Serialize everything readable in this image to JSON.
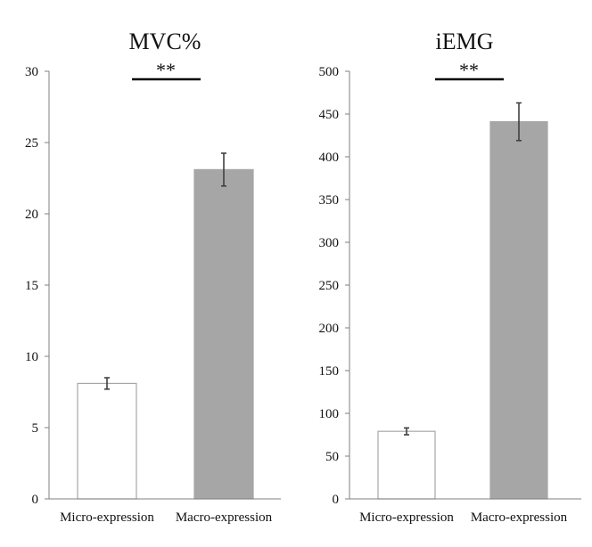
{
  "chart_data": [
    {
      "type": "bar",
      "title": "MVC%",
      "categories": [
        "Micro-expression",
        "Macro-expression"
      ],
      "values": [
        8.1,
        23.1
      ],
      "errors": [
        0.4,
        1.15
      ],
      "colors": [
        "#ffffff",
        "#a6a6a6"
      ],
      "edge_colors": [
        "#a6a6a6",
        "#a6a6a6"
      ],
      "ylim": [
        0,
        30
      ],
      "yticks": [
        0,
        5,
        10,
        15,
        20,
        25,
        30
      ],
      "significance": "**",
      "xlabel": "",
      "ylabel": ""
    },
    {
      "type": "bar",
      "title": "iEMG",
      "categories": [
        "Micro-expression",
        "Macro-expression"
      ],
      "values": [
        79,
        441
      ],
      "errors": [
        4,
        22
      ],
      "colors": [
        "#ffffff",
        "#a6a6a6"
      ],
      "edge_colors": [
        "#a6a6a6",
        "#a6a6a6"
      ],
      "ylim": [
        0,
        500
      ],
      "yticks": [
        0,
        50,
        100,
        150,
        200,
        250,
        300,
        350,
        400,
        450,
        500
      ],
      "significance": "**",
      "xlabel": "",
      "ylabel": ""
    }
  ]
}
